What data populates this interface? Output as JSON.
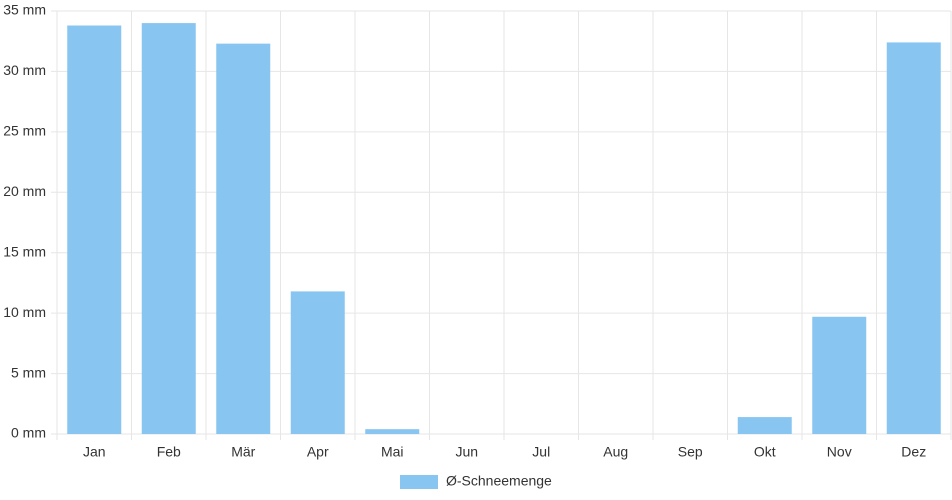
{
  "chart_data": {
    "type": "bar",
    "categories": [
      "Jan",
      "Feb",
      "Mär",
      "Apr",
      "Mai",
      "Jun",
      "Jul",
      "Aug",
      "Sep",
      "Okt",
      "Nov",
      "Dez"
    ],
    "series": [
      {
        "name": "Ø-Schneemenge",
        "color": "#88c5f1",
        "values": [
          33.8,
          34.0,
          32.3,
          11.8,
          0.4,
          0,
          0,
          0,
          0,
          1.4,
          9.7,
          32.4
        ]
      }
    ],
    "ylim": [
      0,
      35
    ],
    "yticks": [
      {
        "value": 0,
        "label": "0 mm"
      },
      {
        "value": 5,
        "label": "5 mm"
      },
      {
        "value": 10,
        "label": "10 mm"
      },
      {
        "value": 15,
        "label": "15 mm"
      },
      {
        "value": 20,
        "label": "20 mm"
      },
      {
        "value": 25,
        "label": "25 mm"
      },
      {
        "value": 30,
        "label": "30 mm"
      },
      {
        "value": 35,
        "label": "35 mm"
      }
    ],
    "grid": true,
    "legend": "bottom"
  }
}
